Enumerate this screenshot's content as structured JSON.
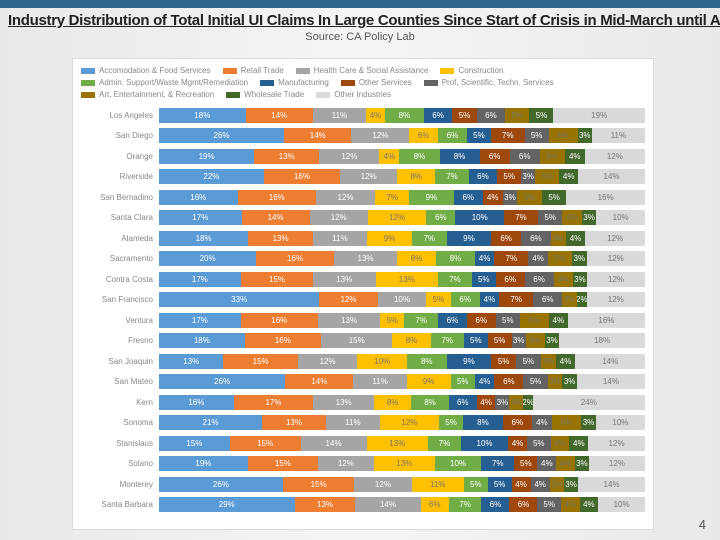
{
  "title": "Industry Distribution of Total Initial UI Claims In Large Counties Since Start of Crisis in Mid-March until April 25 th",
  "source": "Source: CA Policy Lab",
  "page_number": "4",
  "chart": {
    "type": "stacked-bar-horizontal",
    "background_color": "#ffffff",
    "legend": {
      "rows": [
        [
          {
            "label": "Accomodation & Food Services",
            "color": "#5b9bd5"
          },
          {
            "label": "Retail Trade",
            "color": "#ed7d31"
          },
          {
            "label": "Health Care & Social Assistance",
            "color": "#a5a5a5"
          },
          {
            "label": "Construction",
            "color": "#ffc000"
          }
        ],
        [
          {
            "label": "Admin. Support/Waste Mgmt/Remediation",
            "color": "#70ad47"
          },
          {
            "label": "Manufacturing",
            "color": "#255e91"
          },
          {
            "label": "Other Services",
            "color": "#9e480e"
          },
          {
            "label": "Prof, Scientific, Techn. Services",
            "color": "#636363"
          }
        ],
        [
          {
            "label": "Art, Entertainment, & Recreation",
            "color": "#997300"
          },
          {
            "label": "Wholesale Trade",
            "color": "#43682b"
          },
          {
            "label": "Other Industries",
            "color": "#d9d9d9"
          }
        ]
      ]
    },
    "series_colors": [
      "#5b9bd5",
      "#ed7d31",
      "#a5a5a5",
      "#ffc000",
      "#70ad47",
      "#255e91",
      "#9e480e",
      "#636363",
      "#997300",
      "#43682b",
      "#d9d9d9"
    ],
    "muted_series_indexes": [
      3,
      8,
      10
    ],
    "counties": [
      {
        "name": "Los Angeles",
        "values": [
          18,
          14,
          11,
          4,
          8,
          6,
          5,
          6,
          5,
          5,
          19
        ]
      },
      {
        "name": "San Diego",
        "values": [
          26,
          14,
          12,
          6,
          6,
          5,
          7,
          5,
          6,
          3,
          11
        ]
      },
      {
        "name": "Orange",
        "values": [
          19,
          13,
          12,
          4,
          8,
          8,
          6,
          6,
          5,
          4,
          12
        ]
      },
      {
        "name": "Riverside",
        "values": [
          22,
          16,
          12,
          8,
          7,
          6,
          5,
          3,
          5,
          4,
          14
        ]
      },
      {
        "name": "San Bernadino",
        "values": [
          16,
          16,
          12,
          7,
          9,
          6,
          4,
          3,
          5,
          5,
          16
        ]
      },
      {
        "name": "Santa Clara",
        "values": [
          17,
          14,
          12,
          12,
          6,
          10,
          7,
          5,
          4,
          3,
          10
        ]
      },
      {
        "name": "Alameda",
        "values": [
          18,
          13,
          11,
          9,
          7,
          9,
          6,
          6,
          3,
          4,
          12
        ]
      },
      {
        "name": "Sacramento",
        "values": [
          20,
          16,
          13,
          8,
          8,
          4,
          7,
          4,
          5,
          3,
          12
        ]
      },
      {
        "name": "Contra Costa",
        "values": [
          17,
          15,
          13,
          13,
          7,
          5,
          6,
          6,
          4,
          3,
          12
        ]
      },
      {
        "name": "San Francisco",
        "values": [
          33,
          12,
          10,
          5,
          6,
          4,
          7,
          6,
          3,
          2,
          12
        ]
      },
      {
        "name": "Ventura",
        "values": [
          17,
          16,
          13,
          5,
          7,
          6,
          6,
          5,
          6,
          4,
          16
        ]
      },
      {
        "name": "Fresno",
        "values": [
          18,
          16,
          15,
          8,
          7,
          5,
          5,
          3,
          4,
          3,
          18
        ]
      },
      {
        "name": "San Joaquin",
        "values": [
          13,
          15,
          12,
          10,
          8,
          9,
          5,
          5,
          3,
          4,
          14
        ]
      },
      {
        "name": "San Mateo",
        "values": [
          26,
          14,
          11,
          9,
          5,
          4,
          6,
          5,
          3,
          3,
          14
        ]
      },
      {
        "name": "Kern",
        "values": [
          16,
          17,
          13,
          8,
          8,
          6,
          4,
          3,
          3,
          2,
          24
        ]
      },
      {
        "name": "Sonoma",
        "values": [
          21,
          13,
          11,
          12,
          5,
          8,
          6,
          4,
          6,
          3,
          10
        ]
      },
      {
        "name": "Stanislaus",
        "values": [
          15,
          15,
          14,
          13,
          7,
          10,
          4,
          5,
          4,
          4,
          12
        ]
      },
      {
        "name": "Solano",
        "values": [
          19,
          15,
          12,
          13,
          10,
          7,
          5,
          4,
          4,
          3,
          12
        ]
      },
      {
        "name": "Monterey",
        "values": [
          26,
          15,
          12,
          11,
          5,
          5,
          4,
          4,
          3,
          3,
          14
        ]
      },
      {
        "name": "Santa Barbara",
        "values": [
          29,
          13,
          14,
          6,
          7,
          6,
          6,
          5,
          4,
          4,
          10
        ]
      }
    ]
  }
}
